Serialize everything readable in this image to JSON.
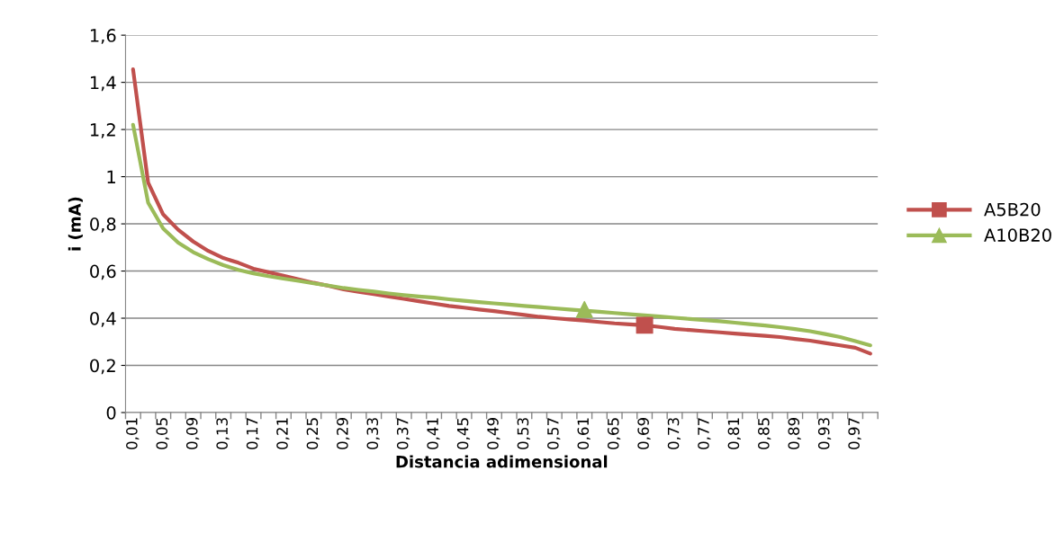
{
  "chart_data": {
    "type": "line",
    "xlabel": "Distancia adimensional",
    "ylabel": "i (mA)",
    "categories": [
      "0,01",
      null,
      "0,05",
      null,
      "0,09",
      null,
      "0,13",
      null,
      "0,17",
      null,
      "0,21",
      null,
      "0,25",
      null,
      "0,29",
      null,
      "0,33",
      null,
      "0,37",
      null,
      "0,41",
      null,
      "0,45",
      null,
      "0,49",
      null,
      "0,53",
      null,
      "0,57",
      null,
      "0,61",
      null,
      "0,65",
      null,
      "0,69",
      null,
      "0,73",
      null,
      "0,77",
      null,
      "0,81",
      null,
      "0,85",
      null,
      "0,89",
      null,
      "0,93",
      null,
      "0,97",
      null
    ],
    "series": [
      {
        "name": "A5B20",
        "color": "#c0504d",
        "values": [
          1.455,
          0.975,
          0.84,
          0.775,
          0.725,
          0.685,
          0.655,
          0.635,
          0.61,
          0.595,
          0.58,
          0.565,
          0.55,
          0.537,
          0.522,
          0.512,
          0.502,
          0.492,
          0.482,
          0.472,
          0.462,
          0.452,
          0.445,
          0.437,
          0.43,
          0.422,
          0.414,
          0.406,
          0.4,
          0.395,
          0.39,
          0.384,
          0.378,
          0.374,
          0.37,
          0.363,
          0.355,
          0.35,
          0.345,
          0.34,
          0.335,
          0.33,
          0.325,
          0.32,
          0.312,
          0.305,
          0.295,
          0.285,
          0.275,
          0.25
        ]
      },
      {
        "name": "A10B20",
        "color": "#9bbb59",
        "values": [
          1.22,
          0.89,
          0.78,
          0.72,
          0.68,
          0.65,
          0.625,
          0.605,
          0.59,
          0.578,
          0.568,
          0.558,
          0.548,
          0.538,
          0.528,
          0.52,
          0.513,
          0.505,
          0.498,
          0.492,
          0.487,
          0.48,
          0.474,
          0.468,
          0.463,
          0.458,
          0.452,
          0.447,
          0.442,
          0.437,
          0.432,
          0.427,
          0.422,
          0.417,
          0.412,
          0.407,
          0.402,
          0.397,
          0.392,
          0.387,
          0.381,
          0.375,
          0.369,
          0.362,
          0.354,
          0.345,
          0.333,
          0.32,
          0.303,
          0.285
        ]
      },
      {
        "type": "scatter",
        "color": "#c0504d",
        "marker": "square",
        "x": [
          "0,69"
        ],
        "values": [
          0.37
        ]
      },
      {
        "type": "scatter",
        "color": "#9bbb59",
        "marker": "triangle",
        "x": [
          "0,61"
        ],
        "values": [
          0.437
        ]
      }
    ],
    "ylim": [
      0,
      1.6
    ],
    "yticks": [
      0,
      {
        "value": 0.2,
        "label": "0,2"
      },
      {
        "value": 0.4,
        "label": "0,4"
      },
      {
        "value": 0.6,
        "label": "0,6"
      },
      {
        "value": 0.8,
        "label": "0,8"
      },
      1,
      {
        "value": 1.2,
        "label": "1,2"
      },
      {
        "value": 1.4,
        "label": "1,4"
      },
      {
        "value": 1.6,
        "label": "1,6"
      }
    ],
    "grid": "y",
    "legend": "right",
    "line_style": "solid"
  }
}
